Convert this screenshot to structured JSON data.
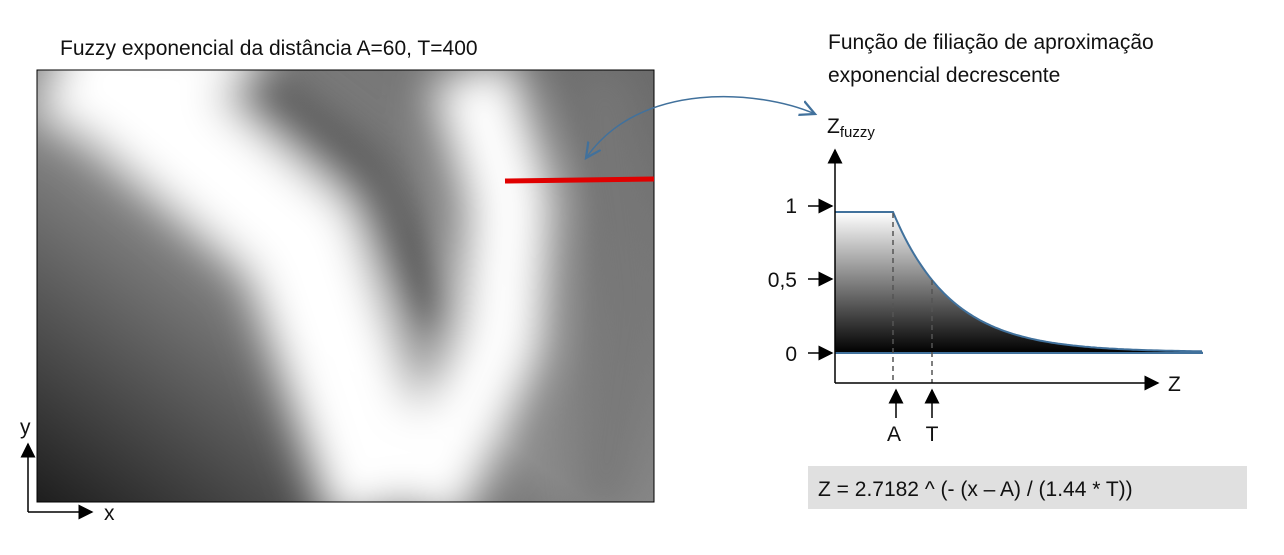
{
  "left_panel": {
    "title": "Fuzzy exponencial da distância A=60, T=400",
    "y_axis_label": "y",
    "x_axis_label": "x"
  },
  "right_panel": {
    "title_lines": [
      "Função de filiação de aproximação",
      "exponencial decrescente"
    ],
    "y_axis_label": "Z",
    "y_axis_subscript": "fuzzy",
    "y_levels": [
      "1",
      "0,5",
      "0"
    ],
    "x_axis_label": "Z",
    "markers": [
      "A",
      "T"
    ],
    "formula": "Z = 2.7182 ^ (- (x – A) / (1.44 * T))"
  }
}
